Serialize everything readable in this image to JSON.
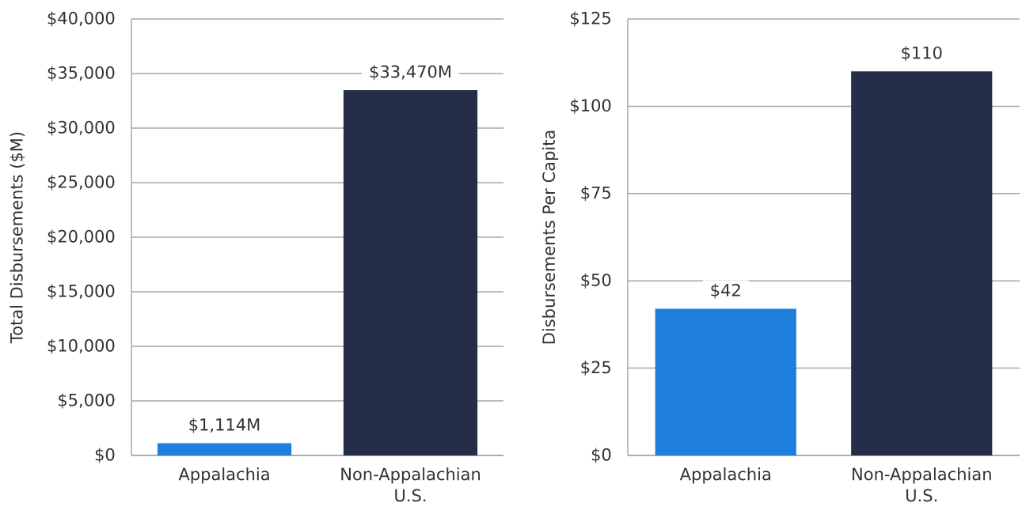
{
  "chart_data": [
    {
      "type": "bar",
      "categories": [
        "Appalachia",
        "Non-Appalachian U.S."
      ],
      "values": [
        1114,
        33470
      ],
      "colors": [
        "#1f7fdc",
        "#252e48"
      ],
      "value_labels": [
        "$1,114M",
        "$33,470M"
      ],
      "ylabel": "Total Disbursements ($M)",
      "ylim": [
        0,
        40000
      ],
      "yticks": [
        {
          "value": 0,
          "label": "$0"
        },
        {
          "value": 5000,
          "label": "$5,000"
        },
        {
          "value": 10000,
          "label": "$10,000"
        },
        {
          "value": 15000,
          "label": "$15,000"
        },
        {
          "value": 20000,
          "label": "$20,000"
        },
        {
          "value": 25000,
          "label": "$25,000"
        },
        {
          "value": 30000,
          "label": "$30,000"
        },
        {
          "value": 35000,
          "label": "$35,000"
        },
        {
          "value": 40000,
          "label": "$40,000"
        }
      ],
      "grid": "y"
    },
    {
      "type": "bar",
      "categories": [
        "Appalachia",
        "Non-Appalachian U.S."
      ],
      "values": [
        42,
        110
      ],
      "colors": [
        "#1f7fdc",
        "#252e48"
      ],
      "value_labels": [
        "$42",
        "$110"
      ],
      "ylabel": "Disbursements Per Capita",
      "ylim": [
        0,
        125
      ],
      "yticks": [
        {
          "value": 0,
          "label": "$0"
        },
        {
          "value": 25,
          "label": "$25"
        },
        {
          "value": 50,
          "label": "$50"
        },
        {
          "value": 75,
          "label": "$75"
        },
        {
          "value": 100,
          "label": "$100"
        },
        {
          "value": 125,
          "label": "$125"
        }
      ],
      "grid": "y"
    }
  ]
}
